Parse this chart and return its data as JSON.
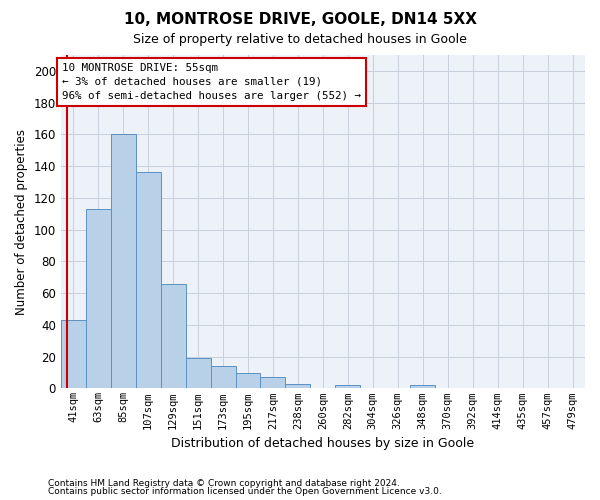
{
  "title": "10, MONTROSE DRIVE, GOOLE, DN14 5XX",
  "subtitle": "Size of property relative to detached houses in Goole",
  "xlabel": "Distribution of detached houses by size in Goole",
  "ylabel": "Number of detached properties",
  "footnote1": "Contains HM Land Registry data © Crown copyright and database right 2024.",
  "footnote2": "Contains public sector information licensed under the Open Government Licence v3.0.",
  "categories": [
    "41sqm",
    "63sqm",
    "85sqm",
    "107sqm",
    "129sqm",
    "151sqm",
    "173sqm",
    "195sqm",
    "217sqm",
    "238sqm",
    "260sqm",
    "282sqm",
    "304sqm",
    "326sqm",
    "348sqm",
    "370sqm",
    "392sqm",
    "414sqm",
    "435sqm",
    "457sqm",
    "479sqm"
  ],
  "values": [
    43,
    113,
    160,
    136,
    66,
    19,
    14,
    10,
    7,
    3,
    0,
    2,
    0,
    0,
    2,
    0,
    0,
    0,
    0,
    0,
    0
  ],
  "bar_color": "#b8d0e8",
  "bar_edge_color": "#5b92c4",
  "highlight_color": "#cc0000",
  "annotation_line1": "10 MONTROSE DRIVE: 55sqm",
  "annotation_line2": "← 3% of detached houses are smaller (19)",
  "annotation_line3": "96% of semi-detached houses are larger (552) →",
  "annotation_box_color": "#cc0000",
  "ylim": [
    0,
    210
  ],
  "yticks": [
    0,
    20,
    40,
    60,
    80,
    100,
    120,
    140,
    160,
    180,
    200
  ],
  "grid_color": "#c8d0dc",
  "bg_color": "#edf2f8",
  "red_line_x": -0.27
}
